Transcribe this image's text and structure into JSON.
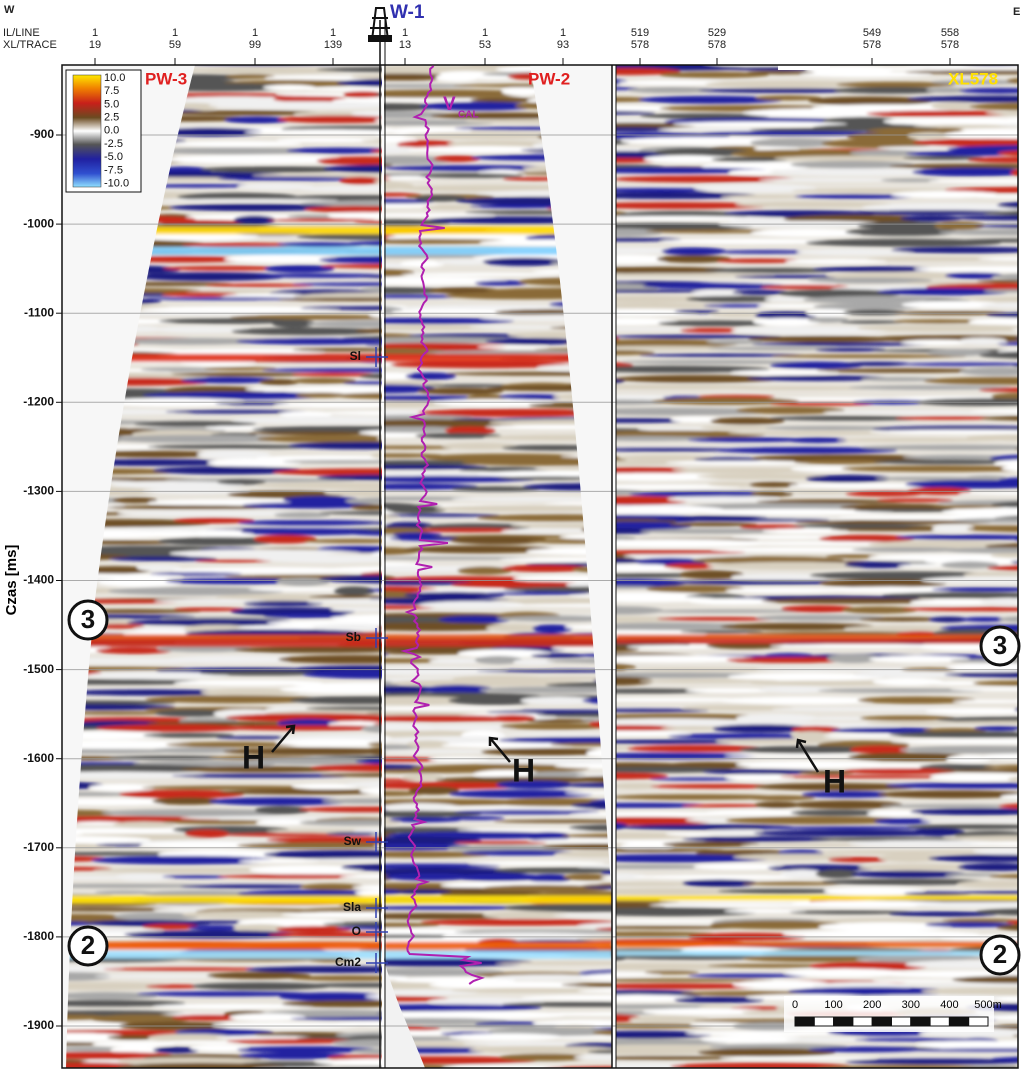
{
  "header": {
    "west": "W",
    "east": "E",
    "row_labels": [
      "IL/LINE",
      "XL/TRACE"
    ],
    "columns": [
      [
        "1",
        "19"
      ],
      [
        "1",
        "59"
      ],
      [
        "1",
        "99"
      ],
      [
        "1",
        "139"
      ],
      [
        "1",
        "13"
      ],
      [
        "1",
        "53"
      ],
      [
        "1",
        "93"
      ],
      [
        "519",
        "578"
      ],
      [
        "529",
        "578"
      ],
      [
        "549",
        "578"
      ],
      [
        "558",
        "578"
      ]
    ]
  },
  "well": {
    "name": "W-1",
    "log_label": "V",
    "log_subscript": "CAL",
    "tops": [
      "Sl",
      "Sb",
      "Sw",
      "Sla",
      "O",
      "Cm2"
    ]
  },
  "panels": [
    "PW-3",
    "PW-2",
    "XL578"
  ],
  "axis": {
    "label": "Czas [ms]",
    "ticks": [
      -900,
      -1000,
      -1100,
      -1200,
      -1300,
      -1400,
      -1500,
      -1600,
      -1700,
      -1800,
      -1900
    ]
  },
  "colorbar": {
    "labels": [
      "10.0",
      "7.5",
      "5.0",
      "2.5",
      "0.0",
      "-2.5",
      "-5.0",
      "-7.5",
      "-10.0"
    ]
  },
  "horizon_markers": [
    "3",
    "3",
    "2",
    "2"
  ],
  "annotations": [
    "H",
    "H",
    "H"
  ],
  "scale_bar": {
    "labels": [
      "0",
      "100",
      "200",
      "300",
      "400",
      "500m"
    ]
  }
}
